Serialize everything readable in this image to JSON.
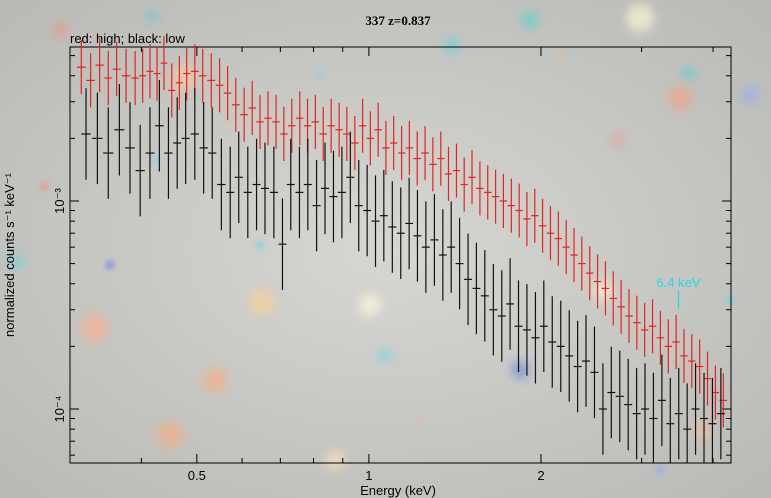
{
  "chart_data": {
    "type": "scatter",
    "title": "337 z=0.837",
    "note": "red: high; black: low",
    "xlabel": "Energy (keV)",
    "ylabel": "normalized counts s⁻¹ keV⁻¹",
    "xscale": "log",
    "yscale": "log",
    "xlim": [
      0.3,
      4.3
    ],
    "ylim": [
      5.5e-05,
      0.0055
    ],
    "x_ticks": [
      {
        "value": 0.5,
        "label": "0.5"
      },
      {
        "value": 1,
        "label": "1"
      },
      {
        "value": 2,
        "label": "2"
      }
    ],
    "y_ticks": [
      {
        "value": 0.001,
        "label": "10⁻³"
      },
      {
        "value": 0.0001,
        "label": "10⁻⁴"
      }
    ],
    "annotation": {
      "text": "6.4 keV",
      "x": 3.48,
      "y": 0.00037
    },
    "series": [
      {
        "color": "#e8221c",
        "x": [
          0.314,
          0.326,
          0.338,
          0.35,
          0.362,
          0.376,
          0.39,
          0.402,
          0.414,
          0.426,
          0.438,
          0.452,
          0.466,
          0.48,
          0.496,
          0.512,
          0.53,
          0.548,
          0.566,
          0.585,
          0.605,
          0.625,
          0.645,
          0.666,
          0.688,
          0.71,
          0.733,
          0.757,
          0.781,
          0.806,
          0.832,
          0.859,
          0.887,
          0.915,
          0.945,
          0.975,
          1.006,
          1.038,
          1.071,
          1.105,
          1.141,
          1.177,
          1.215,
          1.254,
          1.294,
          1.336,
          1.378,
          1.423,
          1.468,
          1.515,
          1.564,
          1.614,
          1.666,
          1.719,
          1.775,
          1.832,
          1.89,
          1.951,
          2.013,
          2.078,
          2.145,
          2.214,
          2.285,
          2.358,
          2.434,
          2.512,
          2.593,
          2.676,
          2.762,
          2.851,
          2.943,
          3.037,
          3.135,
          3.236,
          3.34,
          3.447,
          3.558,
          3.672,
          3.79,
          3.912,
          4.038,
          4.168
        ],
        "y": [
          0.0044,
          0.0038,
          0.0045,
          0.0039,
          0.0043,
          0.004,
          0.0039,
          0.004,
          0.0042,
          0.0041,
          0.0046,
          0.0034,
          0.0037,
          0.0041,
          0.0042,
          0.004,
          0.0038,
          0.0036,
          0.0033,
          0.0029,
          0.0026,
          0.0028,
          0.0024,
          0.0025,
          0.0024,
          0.0021,
          0.0023,
          0.0025,
          0.0023,
          0.0024,
          0.0021,
          0.0023,
          0.0022,
          0.0021,
          0.0019,
          0.0023,
          0.002,
          0.0022,
          0.0018,
          0.0019,
          0.0017,
          0.0018,
          0.0016,
          0.0017,
          0.0015,
          0.0016,
          0.00135,
          0.0014,
          0.0012,
          0.0013,
          0.00115,
          0.0011,
          0.00105,
          0.001,
          0.00095,
          0.0009,
          0.00082,
          0.00085,
          0.00076,
          0.0007,
          0.00066,
          0.0006,
          0.00055,
          0.0005,
          0.00045,
          0.00041,
          0.00038,
          0.00034,
          0.00031,
          0.00028,
          0.00026,
          0.00024,
          0.00025,
          0.00022,
          0.0002,
          0.00021,
          0.00018,
          0.00017,
          0.00016,
          0.00014,
          0.00012,
          0.00011
        ],
        "yerr": 0.13
      },
      {
        "color": "#111111",
        "x": [
          0.32,
          0.335,
          0.35,
          0.366,
          0.382,
          0.398,
          0.414,
          0.43,
          0.446,
          0.462,
          0.478,
          0.496,
          0.514,
          0.532,
          0.552,
          0.572,
          0.592,
          0.614,
          0.636,
          0.658,
          0.682,
          0.706,
          0.73,
          0.756,
          0.782,
          0.81,
          0.838,
          0.867,
          0.897,
          0.928,
          0.96,
          0.993,
          1.027,
          1.062,
          1.099,
          1.137,
          1.176,
          1.216,
          1.258,
          1.302,
          1.347,
          1.393,
          1.441,
          1.491,
          1.542,
          1.595,
          1.651,
          1.708,
          1.766,
          1.827,
          1.89,
          1.956,
          2.023,
          2.093,
          2.166,
          2.241,
          2.318,
          2.398,
          2.481,
          2.567,
          2.655,
          2.747,
          2.842,
          2.94,
          3.041,
          3.146,
          3.255,
          3.367,
          3.484,
          3.604,
          3.728,
          3.857,
          3.99,
          4.128
        ],
        "y": [
          0.0021,
          0.002,
          0.0017,
          0.0022,
          0.0018,
          0.0014,
          0.0017,
          0.0023,
          0.0017,
          0.0019,
          0.002,
          0.0021,
          0.0018,
          0.0017,
          0.0012,
          0.0011,
          0.0013,
          0.0011,
          0.0012,
          0.00115,
          0.0011,
          0.00062,
          0.0012,
          0.0011,
          0.0012,
          0.00095,
          0.00115,
          0.00105,
          0.0011,
          0.0013,
          0.00095,
          0.0009,
          0.0008,
          0.00085,
          0.00075,
          0.0007,
          0.00078,
          0.00068,
          0.0006,
          0.00065,
          0.00055,
          0.0006,
          0.0005,
          0.00042,
          0.00038,
          0.00035,
          0.0003,
          0.00028,
          0.00032,
          0.00025,
          0.00024,
          0.00022,
          0.00025,
          0.00021,
          0.0002,
          0.00018,
          0.00016,
          0.00017,
          0.00015,
          0.0001,
          0.00012,
          0.000115,
          0.000105,
          9.5e-05,
          0.0001,
          9e-05,
          0.00011,
          8.5e-05,
          9.5e-05,
          8e-05,
          0.0001,
          9e-05,
          8.5e-05,
          9.5e-05
        ],
        "yerr": 0.22
      }
    ]
  }
}
